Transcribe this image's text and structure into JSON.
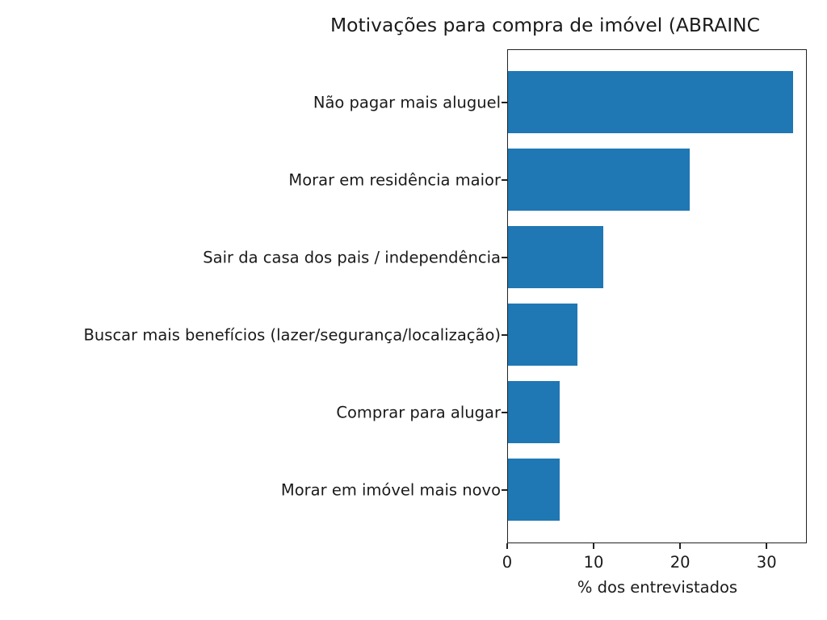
{
  "chart_data": {
    "type": "bar",
    "orientation": "horizontal",
    "title": "Motivações para compra de imóvel (ABRAINC",
    "xlabel": "% dos entrevistados",
    "ylabel": "",
    "categories": [
      "Não pagar mais aluguel",
      "Morar em residência maior",
      "Sair da casa dos pais / independência",
      "Buscar mais benefícios (lazer/segurança/localização)",
      "Comprar para alugar",
      "Morar em imóvel mais novo"
    ],
    "values": [
      33,
      21,
      11,
      8,
      6,
      6
    ],
    "xlim": [
      0,
      34.65
    ],
    "xticks": [
      0,
      10,
      20,
      30
    ],
    "xtick_labels": [
      "0",
      "10",
      "20",
      "30"
    ],
    "grid": false,
    "legend": null,
    "bar_color": "#1f77b4"
  }
}
